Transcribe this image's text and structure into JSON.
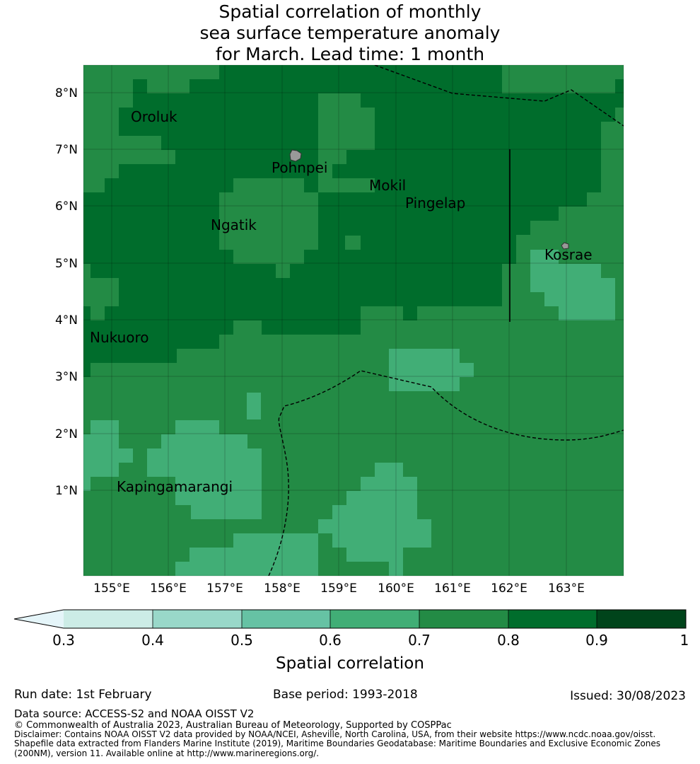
{
  "title": {
    "line1": "Spatial correlation of monthly",
    "line2": "sea surface temperature anomaly",
    "line3": "for March. Lead time: 1 month"
  },
  "map": {
    "lon_ticks": [
      "155°E",
      "156°E",
      "157°E",
      "158°E",
      "159°E",
      "160°E",
      "161°E",
      "162°E",
      "163°E"
    ],
    "lat_ticks": [
      "8°N",
      "7°N",
      "6°N",
      "5°N",
      "4°N",
      "3°N",
      "2°N",
      "1°N"
    ],
    "places": [
      {
        "name": "Oroluk"
      },
      {
        "name": "Pohnpei"
      },
      {
        "name": "Mokil"
      },
      {
        "name": "Pingelap"
      },
      {
        "name": "Ngatik"
      },
      {
        "name": "Kosrae"
      },
      {
        "name": "Nukuoro"
      },
      {
        "name": "Kapingamarangi"
      }
    ],
    "colors": {
      "c03": "#e5f5f9",
      "c04": "#ccece6",
      "c05": "#99d8c9",
      "c06": "#66c2a4",
      "c07": "#41ae76",
      "c08": "#238b45",
      "c09": "#006d2c",
      "c10": "#00441b",
      "land": "#999999"
    }
  },
  "colorbar": {
    "ticks": [
      "0.3",
      "0.4",
      "0.5",
      "0.6",
      "0.7",
      "0.8",
      "0.9",
      "1"
    ],
    "label": "Spatial correlation"
  },
  "footer": {
    "run_date": "Run date: 1st February",
    "base_period": "Base period: 1993-2018",
    "issued": "Issued: 30/08/2023",
    "data_source": "Data source: ACCESS-S2 and NOAA OISST V2",
    "copyright": "© Commonwealth of Australia 2023, Australian Bureau of Meteorology, Supported by COSPPac",
    "disclaimer1": "Disclaimer: Contains NOAA OISST V2 data provided by NOAA/NCEI, Asheville, North Carolina, USA, from their website https://www.ncdc.noaa.gov/oisst.",
    "disclaimer2": "Shapefile data extracted from Flanders Marine Institute (2019), Maritime Boundaries Geodatabase: Maritime Boundaries and Exclusive Economic Zones",
    "disclaimer3": "(200NM), version 11. Available online at http://www.marineregions.org/."
  }
}
